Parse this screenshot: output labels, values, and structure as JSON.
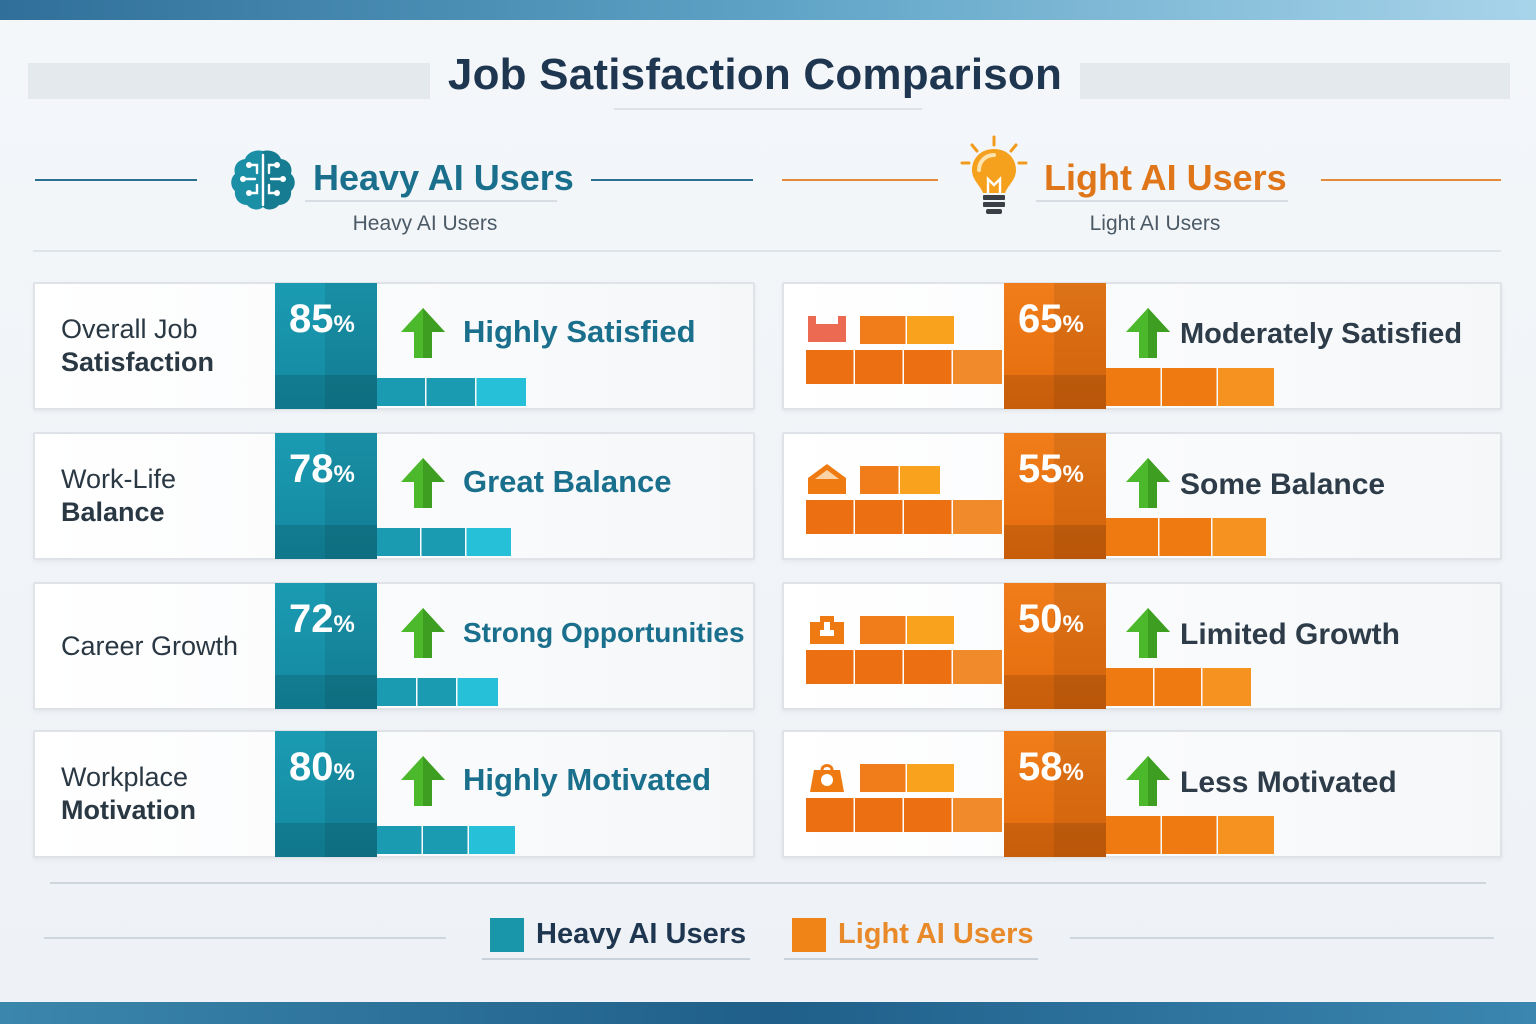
{
  "page": {
    "title": "Job Satisfaction Comparison"
  },
  "colors": {
    "heavy": "#1a9bb2",
    "heavy_light": "#26c1d8",
    "heavy_text": "#1a6f8c",
    "light": "#ef7a12",
    "light_light": "#f8a21e",
    "light_text": "#e0761a",
    "arrow": "#4cb82b"
  },
  "groups": {
    "heavy": {
      "title": "Heavy AI Users",
      "subtitle": "Heavy AI Users",
      "icon": "brain-icon"
    },
    "light": {
      "title": "Light AI Users",
      "subtitle": "Light AI Users",
      "icon": "lightbulb-icon"
    }
  },
  "chart_data": {
    "type": "bar",
    "title": "Job Satisfaction Comparison",
    "unit": "%",
    "ylim": [
      0,
      100
    ],
    "legend_position": "bottom-center",
    "categories": [
      "Overall Job Satisfaction",
      "Work-Life Balance",
      "Career Growth",
      "Workplace Motivation"
    ],
    "series": [
      {
        "name": "Heavy AI Users",
        "values": [
          85,
          78,
          72,
          80
        ],
        "status": [
          "Highly Satisfied",
          "Great Balance",
          "Strong Opportunities",
          "Highly Motivated"
        ]
      },
      {
        "name": "Light AI Users",
        "values": [
          65,
          55,
          50,
          58
        ],
        "status": [
          "Moderately Satisfied",
          "Some Balance",
          "Limited Growth",
          "Less Motivated"
        ]
      }
    ]
  },
  "rows": [
    {
      "label_top": "Overall Job",
      "label_bottom": "Satisfaction",
      "heavy_pct": "85",
      "light_pct": "65",
      "heavy_status": "Highly Satisfied",
      "light_status": "Moderately Satisfied",
      "light_icon": "box-icon"
    },
    {
      "label_top": "Work-Life",
      "label_bottom": "Balance",
      "heavy_pct": "78",
      "light_pct": "55",
      "heavy_status": "Great Balance",
      "light_status": "Some Balance",
      "light_icon": "home-icon"
    },
    {
      "label_top": "",
      "label_bottom": "Career Growth",
      "heavy_pct": "72",
      "light_pct": "50",
      "heavy_status": "Strong Opportunities",
      "light_status": "Limited Growth",
      "light_icon": "briefcase-icon"
    },
    {
      "label_top": "Workplace",
      "label_bottom": "Motivation",
      "heavy_pct": "80",
      "light_pct": "58",
      "heavy_status": "Highly Motivated",
      "light_status": "Less Motivated",
      "light_icon": "bag-icon"
    }
  ],
  "pct_sign": "%",
  "legend": {
    "heavy": "Heavy AI Users",
    "light": "Light AI Users"
  }
}
